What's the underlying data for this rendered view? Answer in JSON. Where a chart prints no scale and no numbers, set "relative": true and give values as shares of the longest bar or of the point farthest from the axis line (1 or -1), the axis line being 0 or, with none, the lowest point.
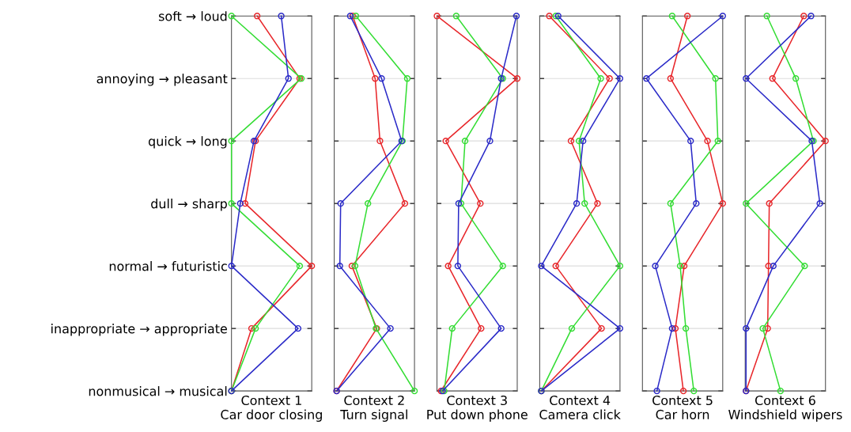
{
  "chart_data": [
    {
      "type": "line",
      "orientation": "horizontal",
      "relative": true,
      "marker": "circle",
      "grid": "y",
      "tick_labels": "y",
      "xlabel": "Context 1\nCar door closing",
      "categories": [
        "soft → loud",
        "annoying → pleasant",
        "quick → long",
        "dull → sharp",
        "normal → futuristic",
        "inappropriate → appropriate",
        "nonmusical → musical"
      ],
      "series": [
        {
          "color": "#e8262a",
          "values": [
            0.32,
            0.85,
            0.3,
            0.17,
            1.0,
            0.25,
            0.0
          ]
        },
        {
          "color": "#33dd33",
          "values": [
            0.0,
            0.87,
            0.0,
            0.0,
            0.85,
            0.3,
            0.0
          ]
        },
        {
          "color": "#2a2ac8",
          "values": [
            0.62,
            0.71,
            0.28,
            0.11,
            0.0,
            0.83,
            0.0
          ]
        }
      ]
    },
    {
      "type": "line",
      "orientation": "horizontal",
      "relative": true,
      "marker": "circle",
      "grid": "y",
      "xlabel": "Context 2\nTurn signal",
      "categories": [
        null,
        null,
        null,
        null,
        null,
        null,
        null
      ],
      "series": [
        {
          "color": "#e8262a",
          "values": [
            0.23,
            0.51,
            0.57,
            0.88,
            0.22,
            0.53,
            0.03
          ]
        },
        {
          "color": "#33dd33",
          "values": [
            0.27,
            0.91,
            0.85,
            0.42,
            0.26,
            0.52,
            1.0
          ]
        },
        {
          "color": "#2a2ac8",
          "values": [
            0.2,
            0.59,
            0.84,
            0.08,
            0.07,
            0.7,
            0.03
          ]
        }
      ]
    },
    {
      "type": "line",
      "orientation": "horizontal",
      "relative": true,
      "marker": "circle",
      "grid": "y",
      "xlabel": "Context 3\nPut down phone",
      "categories": [
        null,
        null,
        null,
        null,
        null,
        null,
        null
      ],
      "series": [
        {
          "color": "#e8262a",
          "values": [
            0.0,
            1.0,
            0.11,
            0.54,
            0.14,
            0.55,
            0.05
          ]
        },
        {
          "color": "#33dd33",
          "values": [
            0.24,
            0.82,
            0.35,
            0.3,
            0.82,
            0.19,
            0.09
          ]
        },
        {
          "color": "#2a2ac8",
          "values": [
            0.99,
            0.8,
            0.66,
            0.27,
            0.26,
            0.8,
            0.07
          ]
        }
      ]
    },
    {
      "type": "line",
      "orientation": "horizontal",
      "relative": true,
      "marker": "circle",
      "grid": "y",
      "xlabel": "Context 4\nCamera click",
      "categories": [
        null,
        null,
        null,
        null,
        null,
        null,
        null
      ],
      "series": [
        {
          "color": "#e8262a",
          "values": [
            0.12,
            0.87,
            0.39,
            0.72,
            0.2,
            0.77,
            0.02
          ]
        },
        {
          "color": "#33dd33",
          "values": [
            0.2,
            0.76,
            0.49,
            0.56,
            1.0,
            0.4,
            0.02
          ]
        },
        {
          "color": "#2a2ac8",
          "values": [
            0.23,
            1.0,
            0.54,
            0.46,
            0.02,
            1.0,
            0.02
          ]
        }
      ]
    },
    {
      "type": "line",
      "orientation": "horizontal",
      "relative": true,
      "marker": "circle",
      "grid": "y",
      "xlabel": "Context 5\nCar horn",
      "categories": [
        null,
        null,
        null,
        null,
        null,
        null,
        null
      ],
      "series": [
        {
          "color": "#e8262a",
          "values": [
            0.56,
            0.35,
            0.81,
            1.0,
            0.52,
            0.41,
            0.51
          ]
        },
        {
          "color": "#33dd33",
          "values": [
            0.37,
            0.91,
            0.94,
            0.35,
            0.47,
            0.54,
            0.64
          ]
        },
        {
          "color": "#2a2ac8",
          "values": [
            1.0,
            0.05,
            0.6,
            0.67,
            0.16,
            0.37,
            0.18
          ]
        }
      ]
    },
    {
      "type": "line",
      "orientation": "horizontal",
      "relative": true,
      "marker": "circle",
      "grid": "y",
      "xlabel": "Context 6\nWindshield wipers",
      "categories": [
        null,
        null,
        null,
        null,
        null,
        null,
        null
      ],
      "series": [
        {
          "color": "#e8262a",
          "values": [
            0.73,
            0.34,
            1.0,
            0.3,
            0.29,
            0.28,
            0.01
          ]
        },
        {
          "color": "#33dd33",
          "values": [
            0.27,
            0.63,
            0.85,
            0.01,
            0.74,
            0.22,
            0.44
          ]
        },
        {
          "color": "#2a2ac8",
          "values": [
            0.82,
            0.01,
            0.83,
            0.93,
            0.35,
            0.01,
            0.01
          ]
        }
      ]
    }
  ]
}
